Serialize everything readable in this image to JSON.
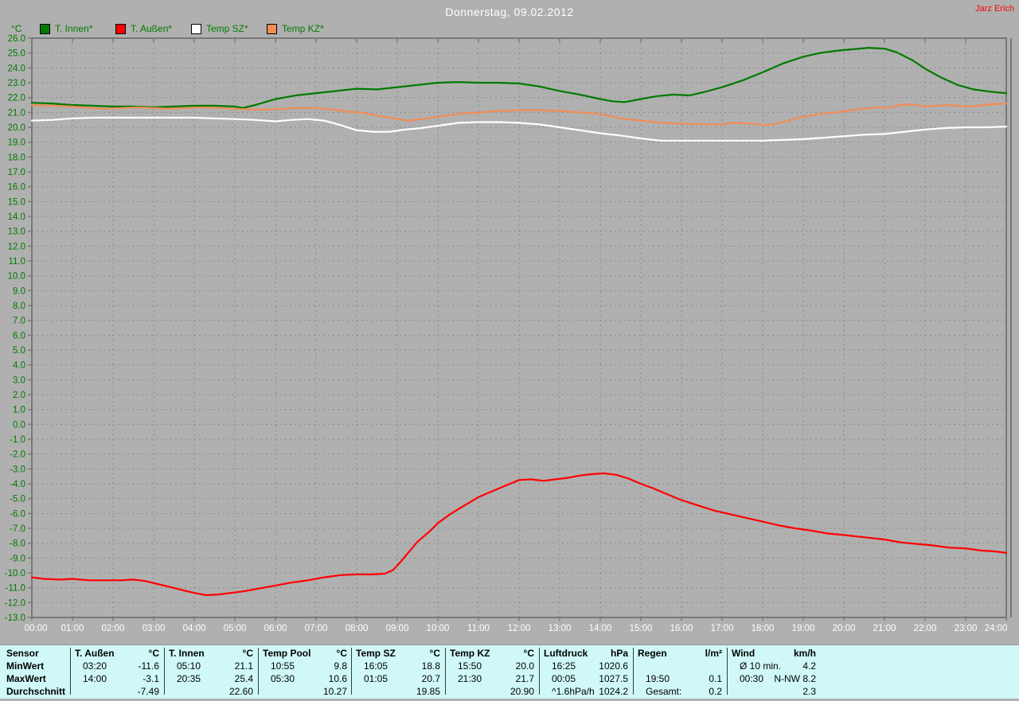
{
  "header": {
    "title": "Donnerstag, 09.02.2012",
    "user": "Jarz Erich"
  },
  "legend": [
    {
      "label": "T. Innen*",
      "color": "#007a00"
    },
    {
      "label": "T. Außen*",
      "color": "#ff0000"
    },
    {
      "label": "Temp SZ*",
      "color": "#ffffff"
    },
    {
      "label": "Temp KZ*",
      "color": "#f28c55"
    }
  ],
  "chart_data": {
    "type": "line",
    "title": "Donnerstag, 09.02.2012",
    "xlabel": "",
    "ylabel": "°C",
    "xlim": [
      0,
      24
    ],
    "ylim": [
      -13,
      26
    ],
    "grid": true,
    "legend_position": "top-left",
    "plot_bg": "#b0b0b0",
    "x_ticks": [
      "00:00",
      "01:00",
      "02:00",
      "03:00",
      "04:00",
      "05:00",
      "06:00",
      "07:00",
      "08:00",
      "09:00",
      "10:00",
      "11:00",
      "12:00",
      "13:00",
      "14:00",
      "15:00",
      "16:00",
      "17:00",
      "18:00",
      "19:00",
      "20:00",
      "21:00",
      "22:00",
      "23:00",
      "24:00"
    ],
    "y_ticks": [
      "26.0",
      "25.0",
      "24.0",
      "23.0",
      "22.0",
      "21.0",
      "20.0",
      "19.0",
      "18.0",
      "17.0",
      "16.0",
      "15.0",
      "14.0",
      "13.0",
      "12.0",
      "11.0",
      "10.0",
      "9.0",
      "8.0",
      "7.0",
      "6.0",
      "5.0",
      "4.0",
      "3.0",
      "2.0",
      "1.0",
      "0.0",
      "-1.0",
      "-2.0",
      "-3.0",
      "-4.0",
      "-5.0",
      "-6.0",
      "-7.0",
      "-8.0",
      "-9.0",
      "-10.0",
      "-11.0",
      "-12.0",
      "-13.0"
    ],
    "series": [
      {
        "name": "T. Innen*",
        "color": "#007a00",
        "points": [
          [
            0,
            21.65
          ],
          [
            0.5,
            21.6
          ],
          [
            1,
            21.5
          ],
          [
            1.5,
            21.45
          ],
          [
            2,
            21.4
          ],
          [
            2.5,
            21.4
          ],
          [
            3,
            21.35
          ],
          [
            3.5,
            21.4
          ],
          [
            4,
            21.45
          ],
          [
            4.5,
            21.45
          ],
          [
            5,
            21.4
          ],
          [
            5.2,
            21.3
          ],
          [
            5.5,
            21.5
          ],
          [
            6,
            21.9
          ],
          [
            6.5,
            22.15
          ],
          [
            7,
            22.3
          ],
          [
            7.5,
            22.45
          ],
          [
            8,
            22.6
          ],
          [
            8.5,
            22.55
          ],
          [
            9,
            22.7
          ],
          [
            9.5,
            22.85
          ],
          [
            10,
            23.0
          ],
          [
            10.5,
            23.05
          ],
          [
            11,
            23.0
          ],
          [
            11.5,
            23.0
          ],
          [
            12,
            22.95
          ],
          [
            12.5,
            22.75
          ],
          [
            13,
            22.45
          ],
          [
            13.5,
            22.2
          ],
          [
            14,
            21.9
          ],
          [
            14.3,
            21.75
          ],
          [
            14.6,
            21.7
          ],
          [
            15,
            21.9
          ],
          [
            15.4,
            22.1
          ],
          [
            15.8,
            22.2
          ],
          [
            16.2,
            22.15
          ],
          [
            16.6,
            22.4
          ],
          [
            17,
            22.7
          ],
          [
            17.5,
            23.15
          ],
          [
            18,
            23.7
          ],
          [
            18.5,
            24.3
          ],
          [
            19,
            24.75
          ],
          [
            19.4,
            25.0
          ],
          [
            19.8,
            25.15
          ],
          [
            20.2,
            25.25
          ],
          [
            20.6,
            25.35
          ],
          [
            21,
            25.3
          ],
          [
            21.3,
            25.05
          ],
          [
            21.7,
            24.5
          ],
          [
            22,
            23.95
          ],
          [
            22.4,
            23.35
          ],
          [
            22.8,
            22.85
          ],
          [
            23.2,
            22.55
          ],
          [
            23.6,
            22.4
          ],
          [
            24,
            22.3
          ]
        ]
      },
      {
        "name": "T. Außen*",
        "color": "#ff0000",
        "points": [
          [
            0,
            -10.3
          ],
          [
            0.3,
            -10.4
          ],
          [
            0.7,
            -10.45
          ],
          [
            1,
            -10.4
          ],
          [
            1.4,
            -10.5
          ],
          [
            1.8,
            -10.5
          ],
          [
            2.2,
            -10.5
          ],
          [
            2.5,
            -10.45
          ],
          [
            2.8,
            -10.55
          ],
          [
            3.1,
            -10.75
          ],
          [
            3.4,
            -10.95
          ],
          [
            3.7,
            -11.15
          ],
          [
            4,
            -11.35
          ],
          [
            4.3,
            -11.5
          ],
          [
            4.6,
            -11.45
          ],
          [
            4.9,
            -11.35
          ],
          [
            5.2,
            -11.25
          ],
          [
            5.6,
            -11.05
          ],
          [
            6,
            -10.85
          ],
          [
            6.4,
            -10.65
          ],
          [
            6.8,
            -10.5
          ],
          [
            7.2,
            -10.3
          ],
          [
            7.6,
            -10.15
          ],
          [
            8,
            -10.1
          ],
          [
            8.4,
            -10.1
          ],
          [
            8.7,
            -10.05
          ],
          [
            8.9,
            -9.8
          ],
          [
            9.1,
            -9.2
          ],
          [
            9.3,
            -8.55
          ],
          [
            9.5,
            -7.9
          ],
          [
            9.8,
            -7.2
          ],
          [
            10,
            -6.65
          ],
          [
            10.3,
            -6.05
          ],
          [
            10.6,
            -5.55
          ],
          [
            11,
            -4.9
          ],
          [
            11.3,
            -4.55
          ],
          [
            11.6,
            -4.2
          ],
          [
            12,
            -3.75
          ],
          [
            12.3,
            -3.7
          ],
          [
            12.6,
            -3.8
          ],
          [
            12.9,
            -3.7
          ],
          [
            13.2,
            -3.6
          ],
          [
            13.5,
            -3.45
          ],
          [
            13.8,
            -3.35
          ],
          [
            14.1,
            -3.3
          ],
          [
            14.4,
            -3.4
          ],
          [
            14.7,
            -3.65
          ],
          [
            15,
            -4.0
          ],
          [
            15.3,
            -4.3
          ],
          [
            15.6,
            -4.65
          ],
          [
            16,
            -5.1
          ],
          [
            16.4,
            -5.45
          ],
          [
            16.8,
            -5.8
          ],
          [
            17.2,
            -6.05
          ],
          [
            17.6,
            -6.3
          ],
          [
            18,
            -6.55
          ],
          [
            18.4,
            -6.8
          ],
          [
            18.8,
            -7.0
          ],
          [
            19.2,
            -7.15
          ],
          [
            19.6,
            -7.35
          ],
          [
            20,
            -7.45
          ],
          [
            20.5,
            -7.6
          ],
          [
            21,
            -7.75
          ],
          [
            21.4,
            -7.95
          ],
          [
            21.8,
            -8.05
          ],
          [
            22.2,
            -8.15
          ],
          [
            22.6,
            -8.3
          ],
          [
            23,
            -8.35
          ],
          [
            23.4,
            -8.5
          ],
          [
            23.7,
            -8.55
          ],
          [
            24,
            -8.65
          ]
        ]
      },
      {
        "name": "Temp SZ*",
        "color": "#ffffff",
        "points": [
          [
            0,
            20.45
          ],
          [
            0.5,
            20.5
          ],
          [
            1,
            20.6
          ],
          [
            1.5,
            20.65
          ],
          [
            2,
            20.65
          ],
          [
            2.5,
            20.65
          ],
          [
            3,
            20.65
          ],
          [
            3.5,
            20.65
          ],
          [
            4,
            20.65
          ],
          [
            4.5,
            20.6
          ],
          [
            5,
            20.55
          ],
          [
            5.5,
            20.5
          ],
          [
            6,
            20.4
          ],
          [
            6.4,
            20.5
          ],
          [
            6.8,
            20.55
          ],
          [
            7.2,
            20.45
          ],
          [
            7.6,
            20.15
          ],
          [
            8,
            19.8
          ],
          [
            8.4,
            19.7
          ],
          [
            8.8,
            19.7
          ],
          [
            9.2,
            19.85
          ],
          [
            9.6,
            19.95
          ],
          [
            10,
            20.1
          ],
          [
            10.5,
            20.3
          ],
          [
            11,
            20.35
          ],
          [
            11.5,
            20.35
          ],
          [
            12,
            20.3
          ],
          [
            12.5,
            20.2
          ],
          [
            13,
            20.0
          ],
          [
            13.5,
            19.8
          ],
          [
            14,
            19.6
          ],
          [
            14.5,
            19.45
          ],
          [
            15,
            19.25
          ],
          [
            15.5,
            19.1
          ],
          [
            16,
            19.1
          ],
          [
            16.5,
            19.1
          ],
          [
            17,
            19.1
          ],
          [
            17.5,
            19.1
          ],
          [
            18,
            19.1
          ],
          [
            18.5,
            19.15
          ],
          [
            19,
            19.2
          ],
          [
            19.5,
            19.3
          ],
          [
            20,
            19.4
          ],
          [
            20.5,
            19.5
          ],
          [
            21,
            19.55
          ],
          [
            21.5,
            19.7
          ],
          [
            22,
            19.85
          ],
          [
            22.5,
            19.95
          ],
          [
            23,
            20.0
          ],
          [
            23.5,
            20.0
          ],
          [
            24,
            20.05
          ]
        ]
      },
      {
        "name": "Temp KZ*",
        "color": "#f28c55",
        "points": [
          [
            0,
            21.5
          ],
          [
            0.5,
            21.45
          ],
          [
            1,
            21.4
          ],
          [
            1.4,
            21.3
          ],
          [
            1.8,
            21.25
          ],
          [
            2.2,
            21.3
          ],
          [
            2.6,
            21.35
          ],
          [
            3,
            21.3
          ],
          [
            3.4,
            21.25
          ],
          [
            3.8,
            21.3
          ],
          [
            4.2,
            21.35
          ],
          [
            4.6,
            21.3
          ],
          [
            5,
            21.25
          ],
          [
            5.4,
            21.2
          ],
          [
            5.8,
            21.2
          ],
          [
            6.2,
            21.25
          ],
          [
            6.6,
            21.3
          ],
          [
            7,
            21.3
          ],
          [
            7.4,
            21.2
          ],
          [
            7.8,
            21.05
          ],
          [
            8.2,
            20.95
          ],
          [
            8.6,
            20.75
          ],
          [
            9,
            20.55
          ],
          [
            9.3,
            20.45
          ],
          [
            9.6,
            20.55
          ],
          [
            10,
            20.7
          ],
          [
            10.5,
            20.9
          ],
          [
            11,
            21.0
          ],
          [
            11.5,
            21.1
          ],
          [
            12,
            21.15
          ],
          [
            12.5,
            21.15
          ],
          [
            13,
            21.1
          ],
          [
            13.5,
            21.0
          ],
          [
            14,
            20.9
          ],
          [
            14.5,
            20.6
          ],
          [
            15,
            20.45
          ],
          [
            15.5,
            20.3
          ],
          [
            16,
            20.25
          ],
          [
            16.5,
            20.2
          ],
          [
            17,
            20.2
          ],
          [
            17.3,
            20.3
          ],
          [
            17.7,
            20.25
          ],
          [
            18,
            20.15
          ],
          [
            18.3,
            20.2
          ],
          [
            18.7,
            20.5
          ],
          [
            19,
            20.7
          ],
          [
            19.4,
            20.9
          ],
          [
            19.8,
            21.0
          ],
          [
            20.2,
            21.15
          ],
          [
            20.5,
            21.25
          ],
          [
            20.8,
            21.35
          ],
          [
            21.1,
            21.3
          ],
          [
            21.4,
            21.5
          ],
          [
            21.7,
            21.55
          ],
          [
            22,
            21.4
          ],
          [
            22.3,
            21.45
          ],
          [
            22.6,
            21.5
          ],
          [
            23,
            21.4
          ],
          [
            23.3,
            21.45
          ],
          [
            23.6,
            21.55
          ],
          [
            24,
            21.6
          ]
        ]
      }
    ]
  },
  "table": {
    "row_labels": [
      "Sensor",
      "MinWert",
      "MaxWert",
      "Durchschnitt"
    ],
    "groups": [
      {
        "name": "T. Außen",
        "unit": "°C",
        "rows": [
          [
            "03:20",
            "-11.6"
          ],
          [
            "14:00",
            "-3.1"
          ],
          [
            "",
            "-7.49"
          ]
        ]
      },
      {
        "name": "T. Innen",
        "unit": "°C",
        "rows": [
          [
            "05:10",
            "21.1"
          ],
          [
            "20:35",
            "25.4"
          ],
          [
            "",
            "22.60"
          ]
        ]
      },
      {
        "name": "Temp Pool",
        "unit": "°C",
        "rows": [
          [
            "10:55",
            "9.8"
          ],
          [
            "05:30",
            "10.6"
          ],
          [
            "",
            "10.27"
          ]
        ]
      },
      {
        "name": "Temp SZ",
        "unit": "°C",
        "rows": [
          [
            "16:05",
            "18.8"
          ],
          [
            "01:05",
            "20.7"
          ],
          [
            "",
            "19.85"
          ]
        ]
      },
      {
        "name": "Temp KZ",
        "unit": "°C",
        "rows": [
          [
            "15:50",
            "20.0"
          ],
          [
            "21:30",
            "21.7"
          ],
          [
            "",
            "20.90"
          ]
        ]
      },
      {
        "name": "Luftdruck",
        "unit": "hPa",
        "rows": [
          [
            "16:25",
            "1020.6"
          ],
          [
            "00:05",
            "1027.5"
          ],
          [
            "^1.6hPa/h",
            "1024.2"
          ]
        ]
      },
      {
        "name": "Regen",
        "unit": "l/m²",
        "rows": [
          [
            "",
            ""
          ],
          [
            "19:50",
            "0.1"
          ],
          [
            "Gesamt:",
            "0.2"
          ]
        ]
      },
      {
        "name": "Wind",
        "unit": "km/h",
        "rows": [
          [
            "Ø 10 min.",
            "4.2"
          ],
          [
            "00:30",
            "N-NW 8.2"
          ],
          [
            "",
            "2.3"
          ]
        ]
      }
    ]
  },
  "colors": {
    "background": "#b0b0b0",
    "frame": "#787878",
    "grid": "#8a8a8a",
    "axis_text_green": "#007a00",
    "axis_text_white": "#ffffff",
    "title_text": "#ffffff",
    "user_text": "#ff0000",
    "table_bg": "#d0f8f8"
  }
}
